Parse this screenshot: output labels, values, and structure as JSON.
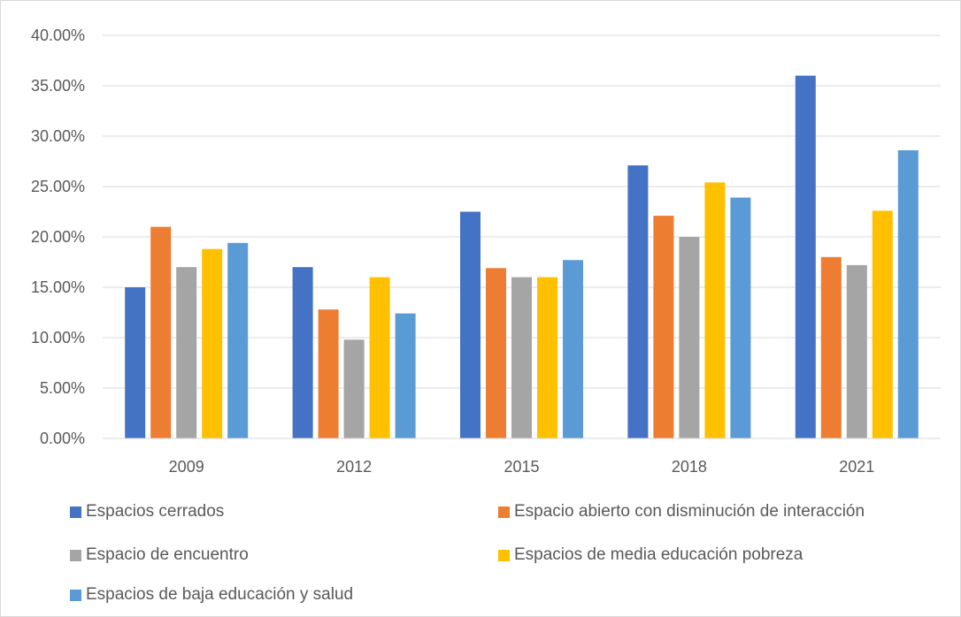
{
  "chart_data": {
    "type": "bar",
    "categories": [
      "2009",
      "2012",
      "2015",
      "2018",
      "2021"
    ],
    "series": [
      {
        "name": "Espacios cerrados",
        "color": "#4472c4",
        "values": [
          15.0,
          17.0,
          22.5,
          27.1,
          36.0
        ]
      },
      {
        "name": "Espacio abierto con disminución de interacción",
        "color": "#ed7d31",
        "values": [
          21.0,
          12.8,
          16.9,
          22.1,
          18.0
        ]
      },
      {
        "name": "Espacio de encuentro",
        "color": "#a5a5a5",
        "values": [
          17.0,
          9.8,
          16.0,
          20.0,
          17.2
        ]
      },
      {
        "name": "Espacios de media educación pobreza",
        "color": "#ffc000",
        "values": [
          18.8,
          16.0,
          16.0,
          25.4,
          22.6
        ]
      },
      {
        "name": "Espacios de baja educación y salud",
        "color": "#5b9bd5",
        "values": [
          19.4,
          12.4,
          17.7,
          23.9,
          28.6
        ]
      }
    ],
    "yticks": [
      "0.00%",
      "5.00%",
      "10.00%",
      "15.00%",
      "20.00%",
      "25.00%",
      "30.00%",
      "35.00%",
      "40.00%"
    ],
    "ylim": [
      0,
      40
    ],
    "title": "",
    "xlabel": "",
    "ylabel": "",
    "grid": true,
    "legend_position": "bottom"
  }
}
